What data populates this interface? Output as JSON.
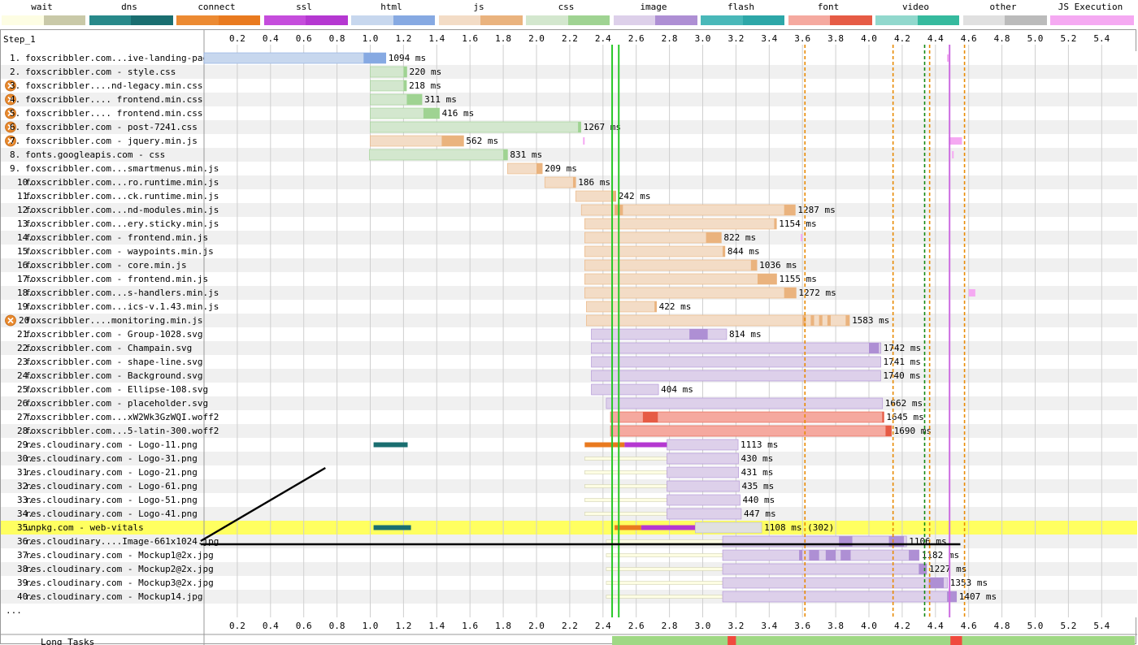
{
  "legend": [
    {
      "label": "wait",
      "a": "#fdfde3",
      "b": "#c9c9a8"
    },
    {
      "label": "dns",
      "a": "#28898a",
      "b": "#1a6e70"
    },
    {
      "label": "connect",
      "a": "#ec8a32",
      "b": "#e97a1f"
    },
    {
      "label": "ssl",
      "a": "#c54ddc",
      "b": "#b538d1"
    },
    {
      "label": "html",
      "a": "#c7d7ee",
      "b": "#86a9e2"
    },
    {
      "label": "js",
      "a": "#f3dcc6",
      "b": "#eab37e"
    },
    {
      "label": "css",
      "a": "#d3e7ce",
      "b": "#9fd392"
    },
    {
      "label": "image",
      "a": "#ddd0ea",
      "b": "#ae8fd4"
    },
    {
      "label": "flash",
      "a": "#49b8b9",
      "b": "#2da7a8"
    },
    {
      "label": "font",
      "a": "#f5a99f",
      "b": "#e65b45"
    },
    {
      "label": "video",
      "a": "#91d8cd",
      "b": "#36ba9e"
    },
    {
      "label": "other",
      "a": "#e0e0e0",
      "b": "#bbbbbb"
    },
    {
      "label": "JS Execution",
      "a": "#f5a9f2",
      "b": "#f5a9f2"
    }
  ],
  "chart_data": {
    "type": "waterfall",
    "title": "Step_1",
    "x_ticks": [
      0.2,
      0.4,
      0.6,
      0.8,
      1.0,
      1.2,
      1.4,
      1.6,
      1.8,
      2.0,
      2.2,
      2.4,
      2.6,
      2.8,
      3.0,
      3.2,
      3.4,
      3.6,
      3.8,
      4.0,
      4.2,
      4.4,
      4.6,
      4.8,
      5.0,
      5.2,
      5.4
    ],
    "x_range": [
      0.0,
      5.6
    ],
    "x_unit": "s",
    "markers": [
      {
        "x": 2.455,
        "color": "#28c828",
        "style": "solid"
      },
      {
        "x": 2.495,
        "color": "#28c828",
        "style": "solid"
      },
      {
        "x": 3.615,
        "color": "#e88a00",
        "style": "dashed"
      },
      {
        "x": 4.145,
        "color": "#e88a00",
        "style": "dashed"
      },
      {
        "x": 4.335,
        "color": "#118811",
        "style": "dashed"
      },
      {
        "x": 4.365,
        "color": "#e88a00",
        "style": "dashed"
      },
      {
        "x": 4.485,
        "color": "#cc6be0",
        "style": "solid"
      },
      {
        "x": 4.575,
        "color": "#e88a00",
        "style": "dashed"
      }
    ],
    "rows": [
      {
        "n": "1.",
        "label": "foxscribbler.com...ive-landing-page/",
        "start": 0.0,
        "end": 1.094,
        "ms": "1094 ms",
        "type": "html",
        "blocking": false,
        "segs": [
          {
            "s": 0.0,
            "e": 0.165,
            "t": "dns"
          },
          {
            "s": 0.165,
            "e": 0.32,
            "t": "connect"
          },
          {
            "s": 0.32,
            "e": 0.495,
            "t": "ssl"
          },
          {
            "s": 0.495,
            "e": 0.96,
            "t": "wait"
          }
        ],
        "dark": [
          {
            "s": 0.96,
            "e": 1.094
          }
        ],
        "ticks": [
          0.97
        ]
      },
      {
        "n": "2.",
        "label": "foxscribbler.com - style.css",
        "start": 1.0,
        "end": 1.22,
        "ms": "220 ms",
        "type": "css",
        "blocking": false,
        "segs": [],
        "dark": [
          {
            "s": 1.2,
            "e": 1.22
          }
        ]
      },
      {
        "n": "3.",
        "label": "foxscribbler....nd-legacy.min.css",
        "start": 1.0,
        "end": 1.218,
        "ms": "218 ms",
        "type": "css",
        "blocking": true,
        "segs": [],
        "dark": [
          {
            "s": 1.2,
            "e": 1.218
          }
        ]
      },
      {
        "n": "4.",
        "label": "foxscribbler.... frontend.min.css",
        "start": 1.0,
        "end": 1.311,
        "ms": "311 ms",
        "type": "css",
        "blocking": true,
        "segs": [],
        "dark": [
          {
            "s": 1.22,
            "e": 1.311
          }
        ]
      },
      {
        "n": "5.",
        "label": "foxscribbler.... frontend.min.css",
        "start": 1.0,
        "end": 1.416,
        "ms": "416 ms",
        "type": "css",
        "blocking": true,
        "segs": [],
        "dark": [
          {
            "s": 1.32,
            "e": 1.416
          }
        ]
      },
      {
        "n": "6.",
        "label": "foxscribbler.com - post-7241.css",
        "start": 1.0,
        "end": 2.267,
        "ms": "1267 ms",
        "type": "css",
        "blocking": true,
        "segs": [],
        "dark": [
          {
            "s": 2.25,
            "e": 2.267
          }
        ]
      },
      {
        "n": "7.",
        "label": "foxscribbler.com - jquery.min.js",
        "start": 1.0,
        "end": 1.562,
        "ms": "562 ms",
        "type": "js",
        "blocking": true,
        "segs": [],
        "dark": [
          {
            "s": 1.43,
            "e": 1.562
          }
        ]
      },
      {
        "n": "8.",
        "label": "fonts.googleapis.com - css",
        "start": 0.995,
        "end": 1.826,
        "ms": "831 ms",
        "type": "css",
        "blocking": false,
        "segs": [
          {
            "s": 0.995,
            "e": 1.17,
            "t": "dns"
          },
          {
            "s": 1.17,
            "e": 1.49,
            "t": "connect"
          },
          {
            "s": 1.49,
            "e": 1.67,
            "t": "ssl"
          }
        ],
        "dark": [
          {
            "s": 1.8,
            "e": 1.826
          }
        ]
      },
      {
        "n": "9.",
        "label": "foxscribbler.com...smartmenus.min.js",
        "start": 1.826,
        "end": 2.035,
        "ms": "209 ms",
        "type": "js",
        "blocking": false,
        "segs": [],
        "dark": [
          {
            "s": 2.0,
            "e": 2.035
          }
        ]
      },
      {
        "n": "10.",
        "label": "foxscribbler.com...ro.runtime.min.js",
        "start": 2.05,
        "end": 2.236,
        "ms": "186 ms",
        "type": "js",
        "blocking": false,
        "segs": [],
        "dark": [
          {
            "s": 2.22,
            "e": 2.236
          }
        ]
      },
      {
        "n": "11.",
        "label": "foxscribbler.com...ck.runtime.min.js",
        "start": 2.236,
        "end": 2.478,
        "ms": "242 ms",
        "type": "js",
        "blocking": false,
        "segs": [],
        "dark": [
          {
            "s": 2.46,
            "e": 2.478
          }
        ]
      },
      {
        "n": "12.",
        "label": "foxscribbler.com...nd-modules.min.js",
        "start": 2.27,
        "end": 3.557,
        "ms": "1287 ms",
        "type": "js",
        "blocking": false,
        "segs": [],
        "dark": [
          {
            "s": 2.47,
            "e": 2.52
          },
          {
            "s": 3.49,
            "e": 3.557
          }
        ]
      },
      {
        "n": "13.",
        "label": "foxscribbler.com...ery.sticky.min.js",
        "start": 2.29,
        "end": 3.444,
        "ms": "1154 ms",
        "type": "js",
        "blocking": false,
        "segs": [],
        "dark": [
          {
            "s": 3.43,
            "e": 3.444
          }
        ]
      },
      {
        "n": "14.",
        "label": "foxscribbler.com - frontend.min.js",
        "start": 2.29,
        "end": 3.112,
        "ms": "822 ms",
        "type": "js",
        "blocking": false,
        "segs": [],
        "dark": [
          {
            "s": 3.02,
            "e": 3.112
          }
        ]
      },
      {
        "n": "15.",
        "label": "foxscribbler.com - waypoints.min.js",
        "start": 2.29,
        "end": 3.134,
        "ms": "844 ms",
        "type": "js",
        "blocking": false,
        "segs": [],
        "dark": [
          {
            "s": 3.12,
            "e": 3.134
          }
        ]
      },
      {
        "n": "16.",
        "label": "foxscribbler.com - core.min.js",
        "start": 2.29,
        "end": 3.326,
        "ms": "1036 ms",
        "type": "js",
        "blocking": false,
        "segs": [],
        "dark": [
          {
            "s": 3.29,
            "e": 3.326
          }
        ]
      },
      {
        "n": "17.",
        "label": "foxscribbler.com - frontend.min.js",
        "start": 2.29,
        "end": 3.445,
        "ms": "1155 ms",
        "type": "js",
        "blocking": false,
        "segs": [],
        "dark": [
          {
            "s": 3.33,
            "e": 3.445
          }
        ]
      },
      {
        "n": "18.",
        "label": "foxscribbler.com...s-handlers.min.js",
        "start": 2.29,
        "end": 3.562,
        "ms": "1272 ms",
        "type": "js",
        "blocking": false,
        "segs": [],
        "dark": [
          {
            "s": 3.49,
            "e": 3.562
          }
        ]
      },
      {
        "n": "19.",
        "label": "foxscribbler.com...ics-v.1.43.min.js",
        "start": 2.3,
        "end": 2.722,
        "ms": "422 ms",
        "type": "js",
        "blocking": false,
        "segs": [],
        "dark": [
          {
            "s": 2.71,
            "e": 2.722
          }
        ]
      },
      {
        "n": "20.",
        "label": "foxscribbler....monitoring.min.js",
        "start": 2.3,
        "end": 3.883,
        "ms": "1583 ms",
        "type": "js",
        "blocking": true,
        "segs": [],
        "dark": [
          {
            "s": 3.6,
            "e": 3.62
          },
          {
            "s": 3.65,
            "e": 3.67
          },
          {
            "s": 3.7,
            "e": 3.72
          },
          {
            "s": 3.75,
            "e": 3.77
          },
          {
            "s": 3.86,
            "e": 3.883
          }
        ]
      },
      {
        "n": "21.",
        "label": "foxscribbler.com - Group-1028.svg",
        "start": 2.33,
        "end": 3.144,
        "ms": "814 ms",
        "type": "image",
        "blocking": false,
        "segs": [],
        "dark": [
          {
            "s": 2.92,
            "e": 3.03
          }
        ]
      },
      {
        "n": "22.",
        "label": "foxscribbler.com - Champain.svg",
        "start": 2.33,
        "end": 4.072,
        "ms": "1742 ms",
        "type": "image",
        "blocking": false,
        "segs": [],
        "dark": [
          {
            "s": 4.0,
            "e": 4.06
          }
        ]
      },
      {
        "n": "23.",
        "label": "foxscribbler.com - shape-line.svg",
        "start": 2.33,
        "end": 4.071,
        "ms": "1741 ms",
        "type": "image",
        "blocking": false,
        "segs": [],
        "dark": []
      },
      {
        "n": "24.",
        "label": "foxscribbler.com - Background.svg",
        "start": 2.33,
        "end": 4.07,
        "ms": "1740 ms",
        "type": "image",
        "blocking": false,
        "segs": [],
        "dark": []
      },
      {
        "n": "25.",
        "label": "foxscribbler.com - Ellipse-108.svg",
        "start": 2.33,
        "end": 2.734,
        "ms": "404 ms",
        "type": "image",
        "blocking": false,
        "segs": [],
        "dark": []
      },
      {
        "n": "26.",
        "label": "foxscribbler.com - placeholder.svg",
        "start": 2.42,
        "end": 4.082,
        "ms": "1662 ms",
        "type": "image",
        "blocking": false,
        "segs": [],
        "dark": []
      },
      {
        "n": "27.",
        "label": "foxscribbler.com...xW2Wk3GzWQI.woff2",
        "start": 2.445,
        "end": 4.09,
        "ms": "1645 ms",
        "type": "font",
        "blocking": false,
        "segs": [],
        "dark": [
          {
            "s": 2.64,
            "e": 2.73
          },
          {
            "s": 4.08,
            "e": 4.09
          }
        ]
      },
      {
        "n": "28.",
        "label": "foxscribbler.com...5-latin-300.woff2",
        "start": 2.445,
        "end": 4.135,
        "ms": "1690 ms",
        "type": "font",
        "blocking": false,
        "segs": [],
        "dark": [
          {
            "s": 4.1,
            "e": 4.135
          }
        ]
      },
      {
        "n": "29.",
        "label": "res.cloudinary.com - Logo-11.png",
        "start": 2.785,
        "end": 3.213,
        "ms": "1113 ms",
        "type": "image",
        "blocking": false,
        "segs": [
          {
            "s": 1.02,
            "e": 1.225,
            "t": "dns"
          },
          {
            "s": 2.29,
            "e": 2.53,
            "t": "connect"
          },
          {
            "s": 2.53,
            "e": 2.785,
            "t": "ssl"
          }
        ],
        "dark": []
      },
      {
        "n": "30.",
        "label": "res.cloudinary.com - Logo-31.png",
        "start": 2.785,
        "end": 3.215,
        "ms": "430 ms",
        "type": "image",
        "blocking": false,
        "segs": [
          {
            "s": 2.29,
            "e": 2.785,
            "t": "wait"
          }
        ],
        "dark": []
      },
      {
        "n": "31.",
        "label": "res.cloudinary.com - Logo-21.png",
        "start": 2.785,
        "end": 3.216,
        "ms": "431 ms",
        "type": "image",
        "blocking": false,
        "segs": [
          {
            "s": 2.29,
            "e": 2.785,
            "t": "wait"
          }
        ],
        "dark": []
      },
      {
        "n": "32.",
        "label": "res.cloudinary.com - Logo-61.png",
        "start": 2.785,
        "end": 3.22,
        "ms": "435 ms",
        "type": "image",
        "blocking": false,
        "segs": [
          {
            "s": 2.29,
            "e": 2.785,
            "t": "wait"
          }
        ],
        "dark": []
      },
      {
        "n": "33.",
        "label": "res.cloudinary.com - Logo-51.png",
        "start": 2.785,
        "end": 3.225,
        "ms": "440 ms",
        "type": "image",
        "blocking": false,
        "segs": [
          {
            "s": 2.29,
            "e": 2.785,
            "t": "wait"
          }
        ],
        "dark": []
      },
      {
        "n": "34.",
        "label": "res.cloudinary.com - Logo-41.png",
        "start": 2.785,
        "end": 3.232,
        "ms": "447 ms",
        "type": "image",
        "blocking": false,
        "segs": [
          {
            "s": 2.29,
            "e": 2.785,
            "t": "wait"
          }
        ],
        "dark": []
      },
      {
        "n": "35.",
        "label": "unpkg.com - web-vitals",
        "start": 2.955,
        "end": 3.355,
        "ms": "1108 ms (302)",
        "type": "other",
        "blocking": false,
        "highlight": true,
        "segs": [
          {
            "s": 1.02,
            "e": 1.245,
            "t": "dns"
          },
          {
            "s": 2.47,
            "e": 2.63,
            "t": "connect"
          },
          {
            "s": 2.63,
            "e": 2.955,
            "t": "ssl"
          }
        ],
        "dark": []
      },
      {
        "n": "36.",
        "label": "res.cloudinary....Image-661x1024.jpg",
        "start": 3.12,
        "end": 4.226,
        "ms": "1106 ms",
        "type": "image",
        "blocking": false,
        "segs": [
          {
            "s": 2.42,
            "e": 3.12,
            "t": "wait"
          }
        ],
        "dark": [
          {
            "s": 3.82,
            "e": 3.9
          },
          {
            "s": 4.12,
            "e": 4.21
          }
        ]
      },
      {
        "n": "37.",
        "label": "res.cloudinary.com - Mockup1@2x.jpg",
        "start": 3.12,
        "end": 4.302,
        "ms": "1182 ms",
        "type": "image",
        "blocking": false,
        "segs": [
          {
            "s": 2.42,
            "e": 3.12,
            "t": "wait"
          }
        ],
        "dark": [
          {
            "s": 3.58,
            "e": 3.6
          },
          {
            "s": 3.64,
            "e": 3.7
          },
          {
            "s": 3.74,
            "e": 3.8
          },
          {
            "s": 3.83,
            "e": 3.89
          },
          {
            "s": 4.24,
            "e": 4.3
          }
        ]
      },
      {
        "n": "38.",
        "label": "res.cloudinary.com - Mockup2@2x.jpg",
        "start": 3.12,
        "end": 4.347,
        "ms": "1227 ms",
        "type": "image",
        "blocking": false,
        "segs": [
          {
            "s": 2.42,
            "e": 3.12,
            "t": "wait"
          }
        ],
        "dark": [
          {
            "s": 4.3,
            "e": 4.347
          }
        ]
      },
      {
        "n": "39.",
        "label": "res.cloudinary.com - Mockup3@2x.jpg",
        "start": 3.12,
        "end": 4.473,
        "ms": "1353 ms",
        "type": "image",
        "blocking": false,
        "segs": [
          {
            "s": 2.42,
            "e": 3.12,
            "t": "wait"
          }
        ],
        "dark": [
          {
            "s": 4.36,
            "e": 4.45
          }
        ]
      },
      {
        "n": "40.",
        "label": "res.cloudinary.com - Mockup14.jpg",
        "start": 3.12,
        "end": 4.527,
        "ms": "1407 ms",
        "type": "image",
        "blocking": false,
        "segs": [
          {
            "s": 2.42,
            "e": 3.12,
            "t": "wait"
          }
        ],
        "dark": [
          {
            "s": 4.47,
            "e": 4.527
          }
        ]
      }
    ],
    "more_label": "...",
    "long_tasks": {
      "label": "Long Tasks",
      "green": {
        "s": 2.455,
        "e": 5.6
      },
      "red": [
        {
          "s": 3.15,
          "e": 3.2
        },
        {
          "s": 4.49,
          "e": 4.56
        }
      ]
    },
    "js_exec": [
      {
        "row": 1,
        "x": 4.47,
        "w": 0.005
      },
      {
        "row": 7,
        "x": 2.28,
        "w": 0.005
      },
      {
        "row": 7,
        "x": 4.48,
        "w": 0.08
      },
      {
        "row": 8,
        "x": 4.5,
        "w": 0.004
      },
      {
        "row": 14,
        "x": 3.59,
        "w": 0.005
      },
      {
        "row": 18,
        "x": 4.6,
        "w": 0.04
      }
    ],
    "annotation": "hand-drawn black line"
  }
}
